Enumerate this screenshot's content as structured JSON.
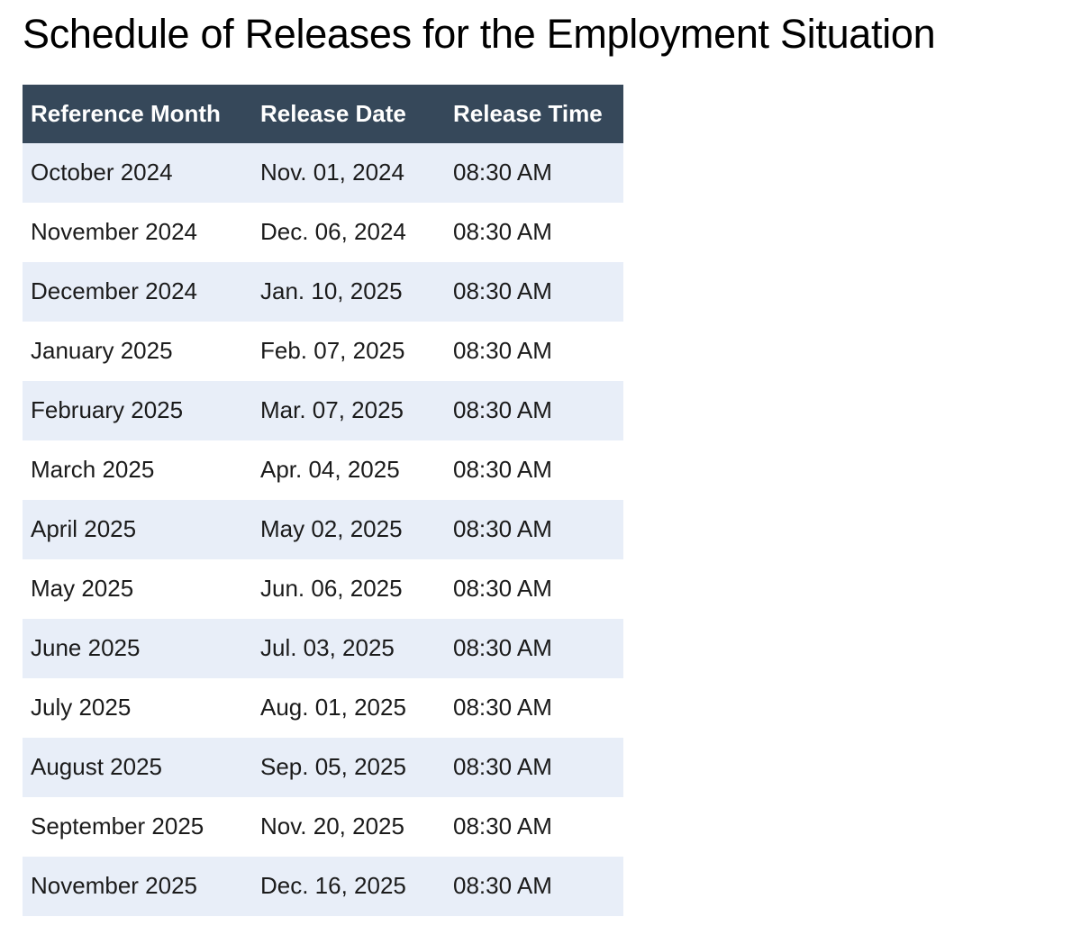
{
  "page": {
    "title": "Schedule of Releases for the Employment Situation"
  },
  "table": {
    "columns": {
      "reference_month": "Reference Month",
      "release_date": "Release Date",
      "release_time": "Release Time"
    },
    "rows": [
      {
        "reference_month": "October 2024",
        "release_date": "Nov. 01, 2024",
        "release_time": "08:30 AM"
      },
      {
        "reference_month": "November 2024",
        "release_date": "Dec. 06, 2024",
        "release_time": "08:30 AM"
      },
      {
        "reference_month": "December 2024",
        "release_date": "Jan. 10, 2025",
        "release_time": "08:30 AM"
      },
      {
        "reference_month": "January 2025",
        "release_date": "Feb. 07, 2025",
        "release_time": "08:30 AM"
      },
      {
        "reference_month": "February 2025",
        "release_date": "Mar. 07, 2025",
        "release_time": "08:30 AM"
      },
      {
        "reference_month": "March 2025",
        "release_date": "Apr. 04, 2025",
        "release_time": "08:30 AM"
      },
      {
        "reference_month": "April 2025",
        "release_date": "May 02, 2025",
        "release_time": "08:30 AM"
      },
      {
        "reference_month": "May 2025",
        "release_date": "Jun. 06, 2025",
        "release_time": "08:30 AM"
      },
      {
        "reference_month": "June 2025",
        "release_date": "Jul. 03, 2025",
        "release_time": "08:30 AM"
      },
      {
        "reference_month": "July 2025",
        "release_date": "Aug. 01, 2025",
        "release_time": "08:30 AM"
      },
      {
        "reference_month": "August 2025",
        "release_date": "Sep. 05, 2025",
        "release_time": "08:30 AM"
      },
      {
        "reference_month": "September 2025",
        "release_date": "Nov. 20, 2025",
        "release_time": "08:30 AM"
      },
      {
        "reference_month": "November 2025",
        "release_date": "Dec. 16, 2025",
        "release_time": "08:30 AM"
      }
    ]
  },
  "colors": {
    "header_bg": "#36485a",
    "header_text": "#ffffff",
    "row_alt_bg": "#e8eef8",
    "row_bg": "#ffffff",
    "body_text": "#1b1b1b",
    "title_text": "#000000"
  }
}
